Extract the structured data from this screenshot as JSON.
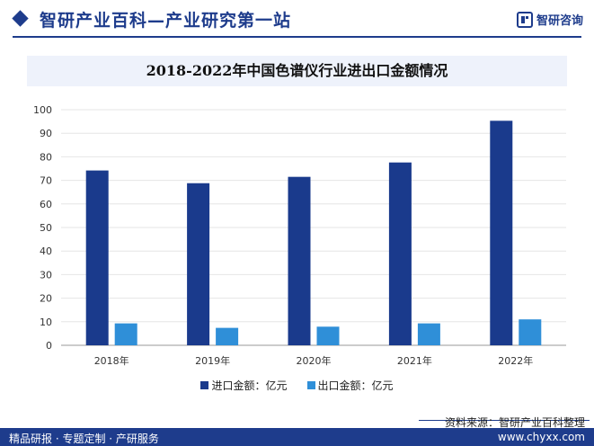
{
  "header": {
    "site_title": "智研产业百科—产业研究第一站",
    "brand_name": "智研咨询"
  },
  "chart_data": {
    "type": "bar",
    "title": "2018-2022年中国色谱仪行业进出口金额情况",
    "categories": [
      "2018年",
      "2019年",
      "2020年",
      "2021年",
      "2022年"
    ],
    "series": [
      {
        "name": "进口金额：亿元",
        "color": "#1a3a8c",
        "values": [
          74.2,
          68.8,
          71.5,
          77.6,
          95.3
        ]
      },
      {
        "name": "出口金额：亿元",
        "color": "#2f8fd8",
        "values": [
          9.3,
          7.4,
          7.9,
          9.3,
          11.0
        ]
      }
    ],
    "ylim": [
      0,
      100
    ],
    "yticks": [
      0,
      10,
      20,
      30,
      40,
      50,
      60,
      70,
      80,
      90,
      100
    ],
    "xlabel": "",
    "ylabel": "",
    "grid": true,
    "legend": "bottom-center"
  },
  "footer": {
    "source": "资料来源：智研产业百科整理",
    "slogan": "精品研报 · 专题定制 · 产研服务",
    "url": "www.chyxx.com"
  }
}
